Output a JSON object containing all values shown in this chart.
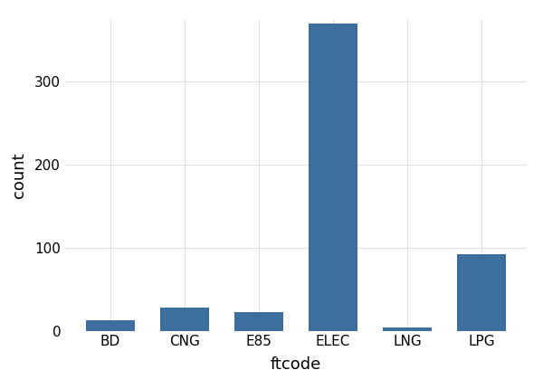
{
  "categories": [
    "BD",
    "CNG",
    "E85",
    "ELEC",
    "LNG",
    "LPG"
  ],
  "values": [
    13,
    28,
    22,
    370,
    4,
    92
  ],
  "bar_color": "#3d6f9e",
  "xlabel": "ftcode",
  "ylabel": "count",
  "background_color": "#ffffff",
  "panel_background": "#ffffff",
  "grid_color": "#e0e0e0",
  "ylim": [
    0,
    375
  ],
  "yticks": [
    0,
    100,
    200,
    300
  ],
  "bar_width": 0.65,
  "xlabel_fontsize": 13,
  "ylabel_fontsize": 13,
  "tick_fontsize": 11
}
